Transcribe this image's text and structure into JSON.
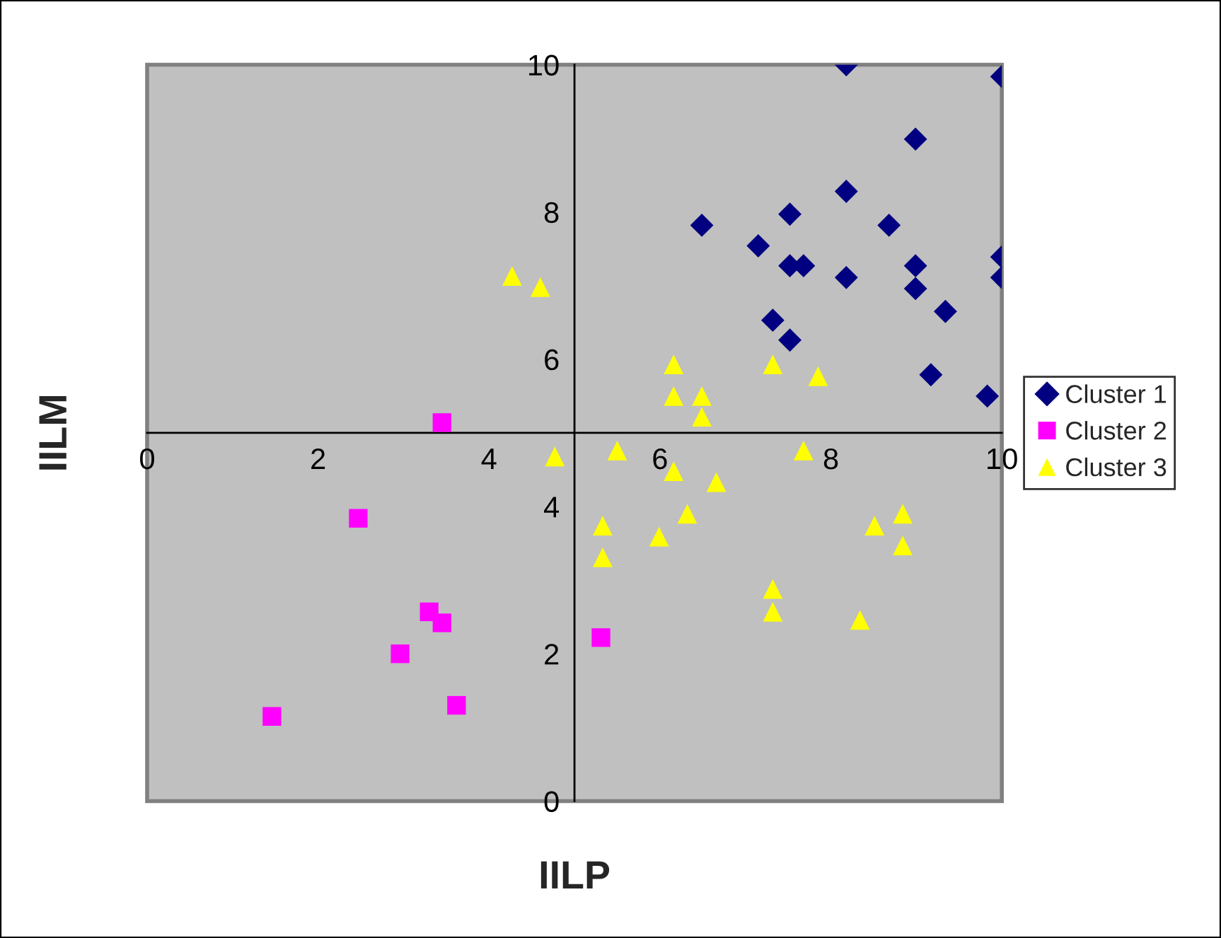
{
  "chart_data": {
    "type": "scatter",
    "xlabel": "IILP",
    "ylabel": "IILM",
    "xlim": [
      0,
      10
    ],
    "ylim": [
      0,
      10
    ],
    "xticks": [
      0,
      2,
      4,
      6,
      8,
      10
    ],
    "yticks": [
      0,
      2,
      4,
      6,
      8,
      10
    ],
    "grid": false,
    "legend": "right",
    "series": [
      {
        "name": "Cluster 1",
        "color": "#000080",
        "marker": "diamond",
        "x": [
          8.18,
          10,
          8.99,
          8.18,
          7.52,
          6.49,
          8.68,
          7.15,
          7.52,
          7.68,
          8.99,
          10,
          8.18,
          10,
          8.99,
          9.34,
          7.32,
          7.52,
          9.17,
          9.83
        ],
        "values": [
          10,
          9.84,
          8.99,
          8.28,
          7.97,
          7.82,
          7.82,
          7.54,
          7.27,
          7.27,
          7.27,
          7.39,
          7.11,
          7.11,
          6.96,
          6.65,
          6.53,
          6.26,
          5.79,
          5.5
        ]
      },
      {
        "name": "Cluster 2",
        "color": "#ff00ff",
        "marker": "square",
        "x": [
          1.46,
          2.47,
          2.96,
          3.3,
          3.45,
          3.62,
          3.45,
          5.31
        ],
        "values": [
          1.15,
          3.84,
          2.0,
          2.57,
          2.42,
          1.3,
          5.14,
          2.22
        ]
      },
      {
        "name": "Cluster 3",
        "color": "#ffff00",
        "marker": "triangle",
        "x": [
          4.27,
          4.6,
          4.77,
          6.16,
          6.16,
          6.49,
          6.49,
          7.32,
          7.85,
          5.5,
          7.68,
          6.16,
          6.66,
          6.32,
          5.33,
          5.99,
          5.33,
          7.32,
          7.32,
          8.34,
          8.51,
          8.84,
          8.84
        ],
        "values": [
          7.13,
          6.98,
          4.68,
          5.93,
          5.5,
          5.5,
          5.22,
          5.93,
          5.77,
          4.76,
          4.76,
          4.48,
          4.33,
          3.9,
          3.74,
          3.59,
          3.31,
          2.88,
          2.57,
          2.46,
          3.74,
          3.9,
          3.47
        ]
      }
    ]
  }
}
